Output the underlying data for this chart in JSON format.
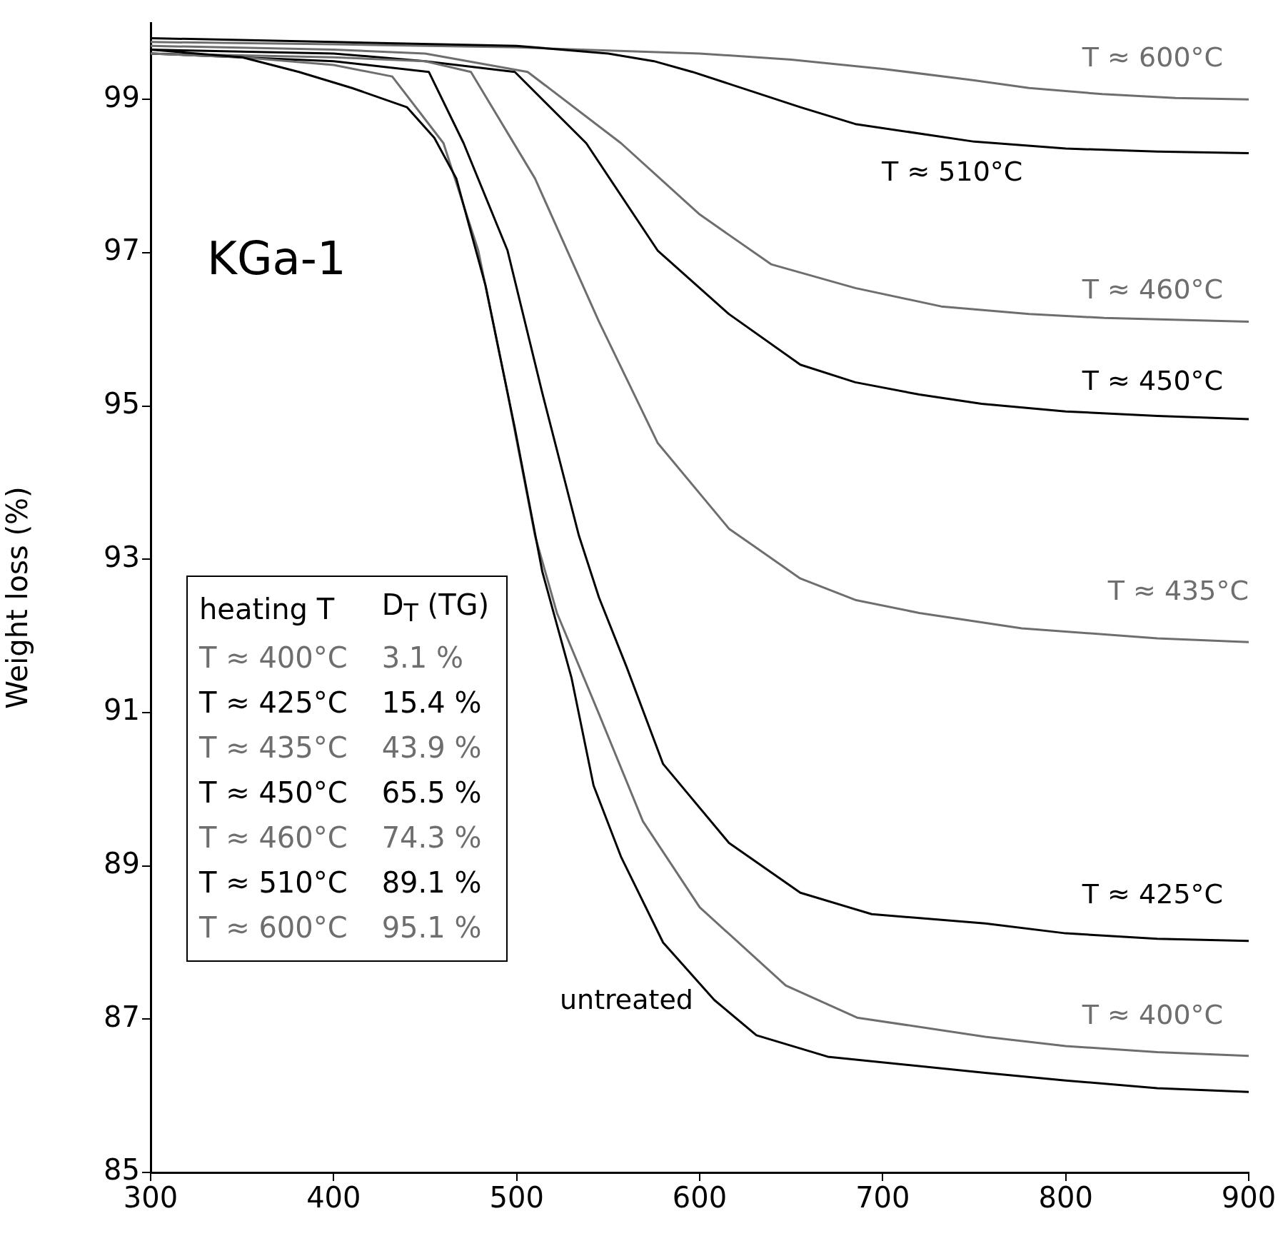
{
  "chart_data": {
    "type": "line",
    "ylabel": "Weight loss (%)",
    "xlim": [
      300,
      900
    ],
    "xticks": [
      300,
      400,
      500,
      600,
      700,
      800,
      900
    ],
    "ylim": [
      85,
      100
    ],
    "yticks": [
      85,
      87,
      89,
      91,
      93,
      95,
      97,
      99
    ],
    "grid": false,
    "legend": false,
    "marker": "none",
    "line_style": "solid",
    "annotations": [
      "KGa-1",
      "heating T",
      "D$_{T}$ (TG)",
      "T ≈ 400°C",
      "3.1 %",
      "T ≈ 425°C",
      "15.4 %",
      "T ≈ 435°C",
      "43.9 %",
      "T ≈ 450°C",
      "65.5 %",
      "T ≈ 460°C",
      "74.3 %",
      "T ≈ 510°C",
      "89.1 %",
      "T ≈ 600°C",
      "95.1 %"
    ],
    "series": [
      {
        "name": "untreated",
        "color": "#000000",
        "x": [
          300,
          350,
          381,
          410,
          440,
          455,
          467,
          483,
          499,
          514,
          530,
          542,
          557,
          580,
          608,
          631,
          670,
          756,
          800,
          850,
          900
        ],
        "values": [
          99.65,
          99.55,
          99.36,
          99.15,
          98.9,
          98.5,
          97.97,
          96.57,
          94.71,
          92.84,
          91.45,
          90.05,
          89.12,
          88.0,
          87.25,
          86.79,
          86.51,
          86.3,
          86.2,
          86.1,
          86.05
        ]
      },
      {
        "name": "T ≈ 400°C",
        "color": "#6e6e6e",
        "x": [
          300,
          350,
          400,
          432,
          460,
          479,
          495,
          510,
          522,
          545,
          569,
          600,
          647,
          686,
          756,
          800,
          850,
          900
        ],
        "values": [
          99.6,
          99.55,
          99.45,
          99.3,
          98.43,
          97.03,
          95.17,
          93.31,
          92.3,
          90.98,
          89.58,
          88.46,
          87.44,
          87.02,
          86.77,
          86.65,
          86.57,
          86.52
        ]
      },
      {
        "name": "T ≈ 425°C",
        "color": "#000000",
        "x": [
          300,
          400,
          452,
          471,
          495,
          514,
          534,
          545,
          560,
          580,
          616,
          655,
          694,
          756,
          800,
          850,
          900
        ],
        "values": [
          99.6,
          99.5,
          99.36,
          98.43,
          97.03,
          95.17,
          93.31,
          92.5,
          91.6,
          90.33,
          89.3,
          88.65,
          88.37,
          88.25,
          88.12,
          88.05,
          88.02
        ]
      },
      {
        "name": "T ≈ 435°C",
        "color": "#6e6e6e",
        "x": [
          300,
          400,
          450,
          475,
          510,
          545,
          577,
          616,
          655,
          685,
          720,
          776,
          850,
          900
        ],
        "values": [
          99.6,
          99.55,
          99.5,
          99.36,
          97.97,
          96.1,
          94.52,
          93.4,
          92.75,
          92.47,
          92.3,
          92.1,
          91.97,
          91.92
        ]
      },
      {
        "name": "T ≈ 450°C",
        "color": "#000000",
        "x": [
          300,
          400,
          450,
          499,
          538,
          577,
          616,
          655,
          685,
          720,
          754,
          800,
          850,
          900
        ],
        "values": [
          99.65,
          99.6,
          99.5,
          99.36,
          98.43,
          97.03,
          96.2,
          95.54,
          95.31,
          95.15,
          95.03,
          94.93,
          94.87,
          94.83
        ]
      },
      {
        "name": "T ≈ 460°C",
        "color": "#6e6e6e",
        "x": [
          300,
          400,
          450,
          506,
          557,
          600,
          639,
          685,
          732,
          780,
          821,
          900
        ],
        "values": [
          99.7,
          99.65,
          99.6,
          99.36,
          98.43,
          97.5,
          96.85,
          96.54,
          96.3,
          96.2,
          96.15,
          96.1
        ]
      },
      {
        "name": "T ≈ 510°C",
        "color": "#000000",
        "x": [
          300,
          400,
          500,
          550,
          575,
          596,
          655,
          685,
          750,
          800,
          850,
          900
        ],
        "values": [
          99.8,
          99.75,
          99.7,
          99.6,
          99.5,
          99.36,
          98.9,
          98.68,
          98.45,
          98.36,
          98.32,
          98.3
        ]
      },
      {
        "name": "T ≈ 600°C",
        "color": "#6e6e6e",
        "x": [
          300,
          400,
          500,
          550,
          600,
          650,
          700,
          750,
          780,
          820,
          860,
          900
        ],
        "values": [
          99.75,
          99.72,
          99.68,
          99.64,
          99.6,
          99.52,
          99.4,
          99.25,
          99.15,
          99.07,
          99.02,
          99.0
        ]
      }
    ]
  }
}
